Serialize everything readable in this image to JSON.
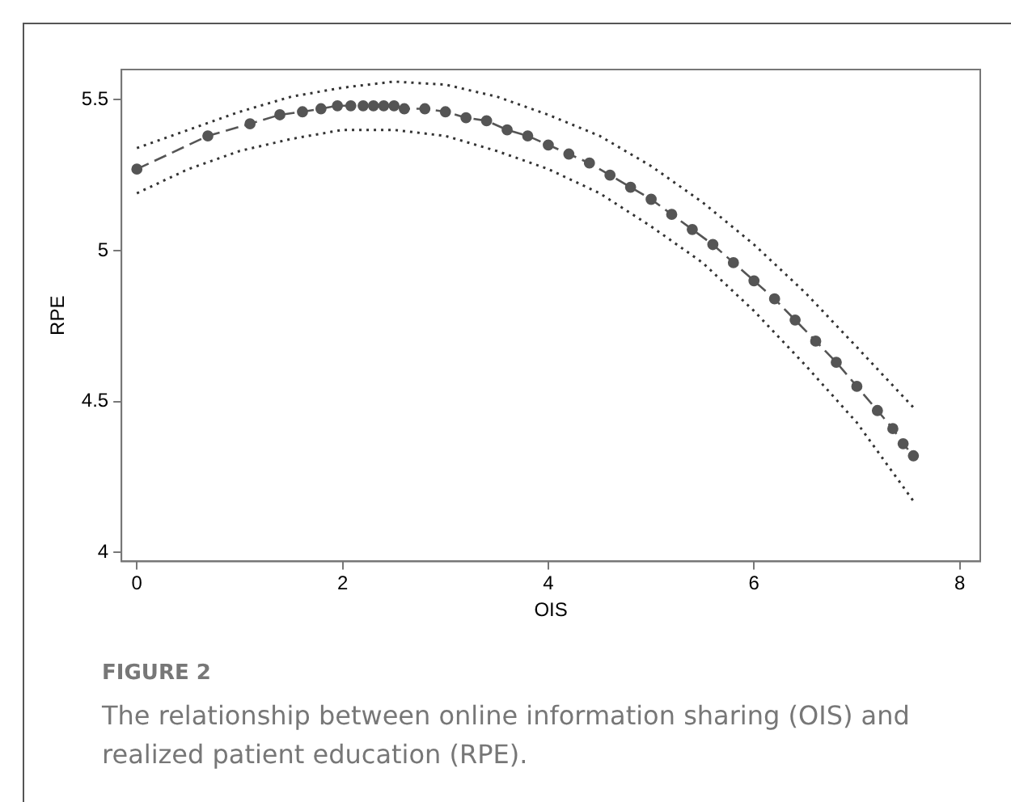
{
  "chart_data": {
    "type": "line",
    "xlabel": "OIS",
    "ylabel": "RPE",
    "annotations": [
      "FIGURE 2",
      "The relationship between online information sharing (OIS) and realized patient education (RPE)."
    ],
    "xlim": [
      -0.15,
      8.2
    ],
    "xticks": [
      0,
      2,
      4,
      6,
      8
    ],
    "ylim": [
      3.97,
      5.6
    ],
    "yticks": [
      4,
      4.5,
      5,
      5.5
    ],
    "grid": false,
    "legend": false,
    "series": [
      {
        "color": "#555555",
        "marker": "circle",
        "line_style": "dashed",
        "x": [
          0,
          0.69,
          1.1,
          1.39,
          1.61,
          1.79,
          1.95,
          2.08,
          2.2,
          2.3,
          2.4,
          2.5,
          2.6,
          2.8,
          3,
          3.2,
          3.4,
          3.6,
          3.8,
          4,
          4.2,
          4.4,
          4.6,
          4.8,
          5,
          5.2,
          5.4,
          5.6,
          5.8,
          6,
          6.2,
          6.4,
          6.6,
          6.8,
          7,
          7.2,
          7.35,
          7.45,
          7.55
        ],
        "values": [
          5.27,
          5.38,
          5.42,
          5.45,
          5.46,
          5.47,
          5.48,
          5.48,
          5.48,
          5.48,
          5.48,
          5.48,
          5.47,
          5.47,
          5.46,
          5.44,
          5.43,
          5.4,
          5.38,
          5.35,
          5.32,
          5.29,
          5.25,
          5.21,
          5.17,
          5.12,
          5.07,
          5.02,
          4.96,
          4.9,
          4.84,
          4.77,
          4.7,
          4.63,
          4.55,
          4.47,
          4.41,
          4.36,
          4.32
        ]
      },
      {
        "color": "#333333",
        "marker": "none",
        "line_style": "dotted",
        "x": [
          0,
          0.5,
          1,
          1.5,
          2,
          2.5,
          3,
          3.5,
          4,
          4.5,
          5,
          5.5,
          6,
          6.5,
          7,
          7.55
        ],
        "values": [
          5.34,
          5.4,
          5.46,
          5.51,
          5.54,
          5.56,
          5.55,
          5.51,
          5.45,
          5.38,
          5.28,
          5.16,
          5.02,
          4.86,
          4.68,
          4.48
        ]
      },
      {
        "color": "#333333",
        "marker": "none",
        "line_style": "dotted",
        "x": [
          0,
          0.5,
          1,
          1.5,
          2,
          2.5,
          3,
          3.5,
          4,
          4.5,
          5,
          5.5,
          6,
          6.5,
          7,
          7.55
        ],
        "values": [
          5.19,
          5.27,
          5.33,
          5.37,
          5.4,
          5.4,
          5.38,
          5.33,
          5.27,
          5.19,
          5.08,
          4.96,
          4.8,
          4.62,
          4.43,
          4.17
        ]
      }
    ]
  }
}
